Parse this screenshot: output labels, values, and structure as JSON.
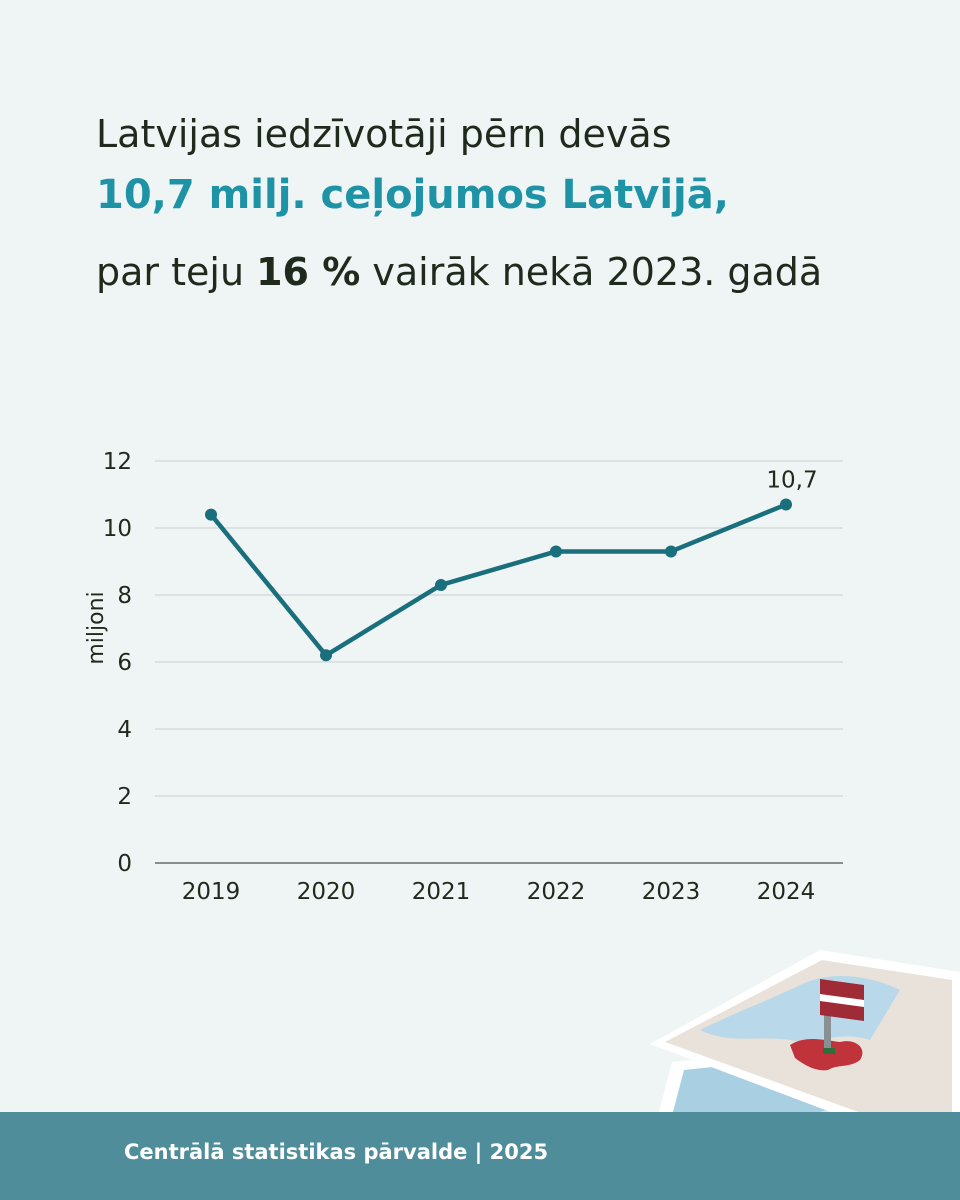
{
  "headline": {
    "line1": "Latvijas iedzīvotāji pērn devās",
    "line2": "10,7 milj. ceļojumos Latvijā,",
    "line3_pre": "par teju ",
    "line3_bold": "16 %",
    "line3_post": " vairāk nekā 2023. gadā"
  },
  "chart_data": {
    "type": "line",
    "x": [
      "2019",
      "2020",
      "2021",
      "2022",
      "2023",
      "2024"
    ],
    "series": [
      {
        "values": [
          10.4,
          6.2,
          8.3,
          9.3,
          9.3,
          10.7
        ]
      }
    ],
    "ylabel": "miljoni",
    "ylim": [
      0,
      12
    ],
    "yticks": [
      "0",
      "2",
      "4",
      "6",
      "8",
      "10",
      "12"
    ],
    "data_labels": [
      {
        "index": 5,
        "text": "10,7"
      }
    ],
    "grid": true,
    "line_color": "#1a6f7c"
  },
  "footer": {
    "text": "Centrālā statistikas pārvalde | 2025"
  },
  "colors": {
    "background": "#eff4f5",
    "accent": "#1e93a6",
    "footer_bg": "#4f8d9b"
  },
  "illustration": {
    "name": "map-with-latvia-flag"
  }
}
